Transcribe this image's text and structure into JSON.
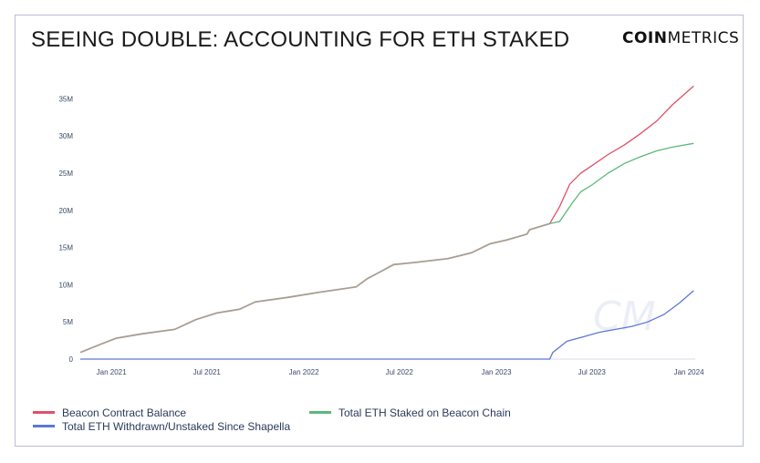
{
  "title": "SEEING DOUBLE: ACCOUNTING FOR ETH STAKED",
  "brand": {
    "bold": "COIN",
    "light": "METRICS"
  },
  "colors": {
    "red": "#e0506a",
    "green": "#5cb87a",
    "blue": "#5b78d8",
    "axis": "#3a4a6a",
    "gray": "#a89e91"
  },
  "chart_data": {
    "type": "line",
    "x_ticks": [
      "Jan 2021",
      "Jul 2021",
      "Jan 2022",
      "Jul 2022",
      "Jan 2023",
      "Jul 2023",
      "Jan 2024"
    ],
    "y_ticks": [
      "35M",
      "30M",
      "25M",
      "20M",
      "15M",
      "10M",
      "5M",
      "0"
    ],
    "xlim": [
      "2020-11-03",
      "2024-01-13"
    ],
    "ylim": [
      0,
      37000000
    ],
    "shared_until": "2023-04-12",
    "series": [
      {
        "name": "Beacon Contract Balance",
        "color": "#e0506a",
        "points": [
          [
            "2023-04-12",
            18200000
          ],
          [
            "2023-05-01",
            20500000
          ],
          [
            "2023-05-20",
            23500000
          ],
          [
            "2023-06-10",
            25000000
          ],
          [
            "2023-07-01",
            26000000
          ],
          [
            "2023-08-01",
            27500000
          ],
          [
            "2023-09-01",
            28800000
          ],
          [
            "2023-10-01",
            30300000
          ],
          [
            "2023-11-01",
            32000000
          ],
          [
            "2023-12-01",
            34200000
          ],
          [
            "2024-01-10",
            36700000
          ]
        ]
      },
      {
        "name": "Total ETH Staked on Beacon Chain",
        "color": "#5cb87a",
        "points": [
          [
            "2020-11-03",
            900000
          ],
          [
            "2020-12-15",
            2100000
          ],
          [
            "2021-01-10",
            2800000
          ],
          [
            "2021-03-01",
            3400000
          ],
          [
            "2021-05-01",
            4000000
          ],
          [
            "2021-06-10",
            5300000
          ],
          [
            "2021-07-20",
            6200000
          ],
          [
            "2021-09-01",
            6700000
          ],
          [
            "2021-10-01",
            7700000
          ],
          [
            "2021-12-01",
            8300000
          ],
          [
            "2022-02-01",
            9000000
          ],
          [
            "2022-04-10",
            9700000
          ],
          [
            "2022-05-01",
            10800000
          ],
          [
            "2022-05-25",
            11700000
          ],
          [
            "2022-06-20",
            12700000
          ],
          [
            "2022-08-01",
            13000000
          ],
          [
            "2022-10-01",
            13500000
          ],
          [
            "2022-11-15",
            14300000
          ],
          [
            "2022-12-20",
            15500000
          ],
          [
            "2023-01-20",
            16000000
          ],
          [
            "2023-02-28",
            16800000
          ],
          [
            "2023-03-05",
            17400000
          ],
          [
            "2023-04-12",
            18200000
          ],
          [
            "2023-05-01",
            18500000
          ],
          [
            "2023-05-25",
            21000000
          ],
          [
            "2023-06-10",
            22500000
          ],
          [
            "2023-07-01",
            23400000
          ],
          [
            "2023-08-01",
            25000000
          ],
          [
            "2023-09-01",
            26300000
          ],
          [
            "2023-10-01",
            27200000
          ],
          [
            "2023-11-01",
            28000000
          ],
          [
            "2023-12-01",
            28500000
          ],
          [
            "2024-01-10",
            29000000
          ]
        ]
      },
      {
        "name": "Total ETH Withdrawn/Unstaked Since Shapella",
        "color": "#5b78d8",
        "points": [
          [
            "2020-11-03",
            0
          ],
          [
            "2023-04-12",
            0
          ],
          [
            "2023-04-18",
            900000
          ],
          [
            "2023-05-15",
            2400000
          ],
          [
            "2023-06-15",
            3000000
          ],
          [
            "2023-07-15",
            3600000
          ],
          [
            "2023-08-15",
            4000000
          ],
          [
            "2023-09-15",
            4400000
          ],
          [
            "2023-10-15",
            5000000
          ],
          [
            "2023-11-15",
            6000000
          ],
          [
            "2023-12-15",
            7600000
          ],
          [
            "2024-01-10",
            9200000
          ]
        ]
      }
    ],
    "legend_position": "bottom",
    "grid": false
  }
}
